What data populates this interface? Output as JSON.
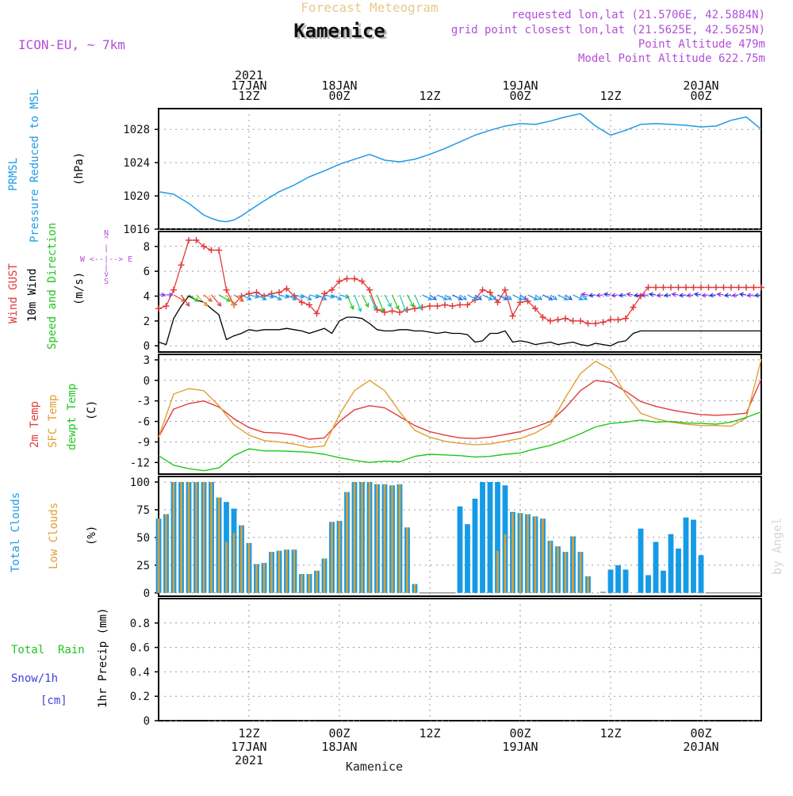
{
  "header": {
    "product": "Forecast Meteogram",
    "location": "Kamenice",
    "model": "ICON-EU, ~ 7km",
    "requested": "requested lon,lat (21.5706E, 42.5884N)",
    "gridpoint": "grid point closest lon,lat (21.5625E, 42.5625N)",
    "point_alt": "Point Altitude 479m",
    "model_alt": "Model Point Altitude 622.75m",
    "footer": "Kamenice",
    "watermark": "by Angel"
  },
  "colors": {
    "header_product": "#e8c98c",
    "header_meta": "#b14fd8",
    "pressure": "#1e9be6",
    "gust": "#e23a3a",
    "wind": "#000000",
    "temp2m": "#e23a3a",
    "sfc": "#e0a030",
    "dewpt": "#1dc81d",
    "total_clouds": "#159be6",
    "low_clouds": "#e0a030",
    "rain": "#1dc81d",
    "snow": "#3f3fe0"
  },
  "time_axis": {
    "top_labels": [
      {
        "h": 12,
        "lines": [
          "2021",
          "17JAN",
          "12Z"
        ]
      },
      {
        "h": 24,
        "lines": [
          "18JAN",
          "00Z"
        ]
      },
      {
        "h": 36,
        "lines": [
          "12Z"
        ]
      },
      {
        "h": 48,
        "lines": [
          "19JAN",
          "00Z"
        ]
      },
      {
        "h": 60,
        "lines": [
          "12Z"
        ]
      },
      {
        "h": 72,
        "lines": [
          "20JAN",
          "00Z"
        ]
      }
    ],
    "bottom_labels": [
      {
        "h": 12,
        "lines": [
          "12Z",
          "17JAN",
          "2021"
        ]
      },
      {
        "h": 24,
        "lines": [
          "00Z",
          "18JAN"
        ]
      },
      {
        "h": 36,
        "lines": [
          "12Z"
        ]
      },
      {
        "h": 48,
        "lines": [
          "00Z",
          "19JAN"
        ]
      },
      {
        "h": 60,
        "lines": [
          "12Z"
        ]
      },
      {
        "h": 72,
        "lines": [
          "00Z",
          "20JAN"
        ]
      }
    ]
  },
  "panels": {
    "pressure": {
      "labels": [
        "PRMSL",
        "Pressure Reduced to MSL",
        "(hPa)"
      ],
      "ticks": [
        "1016",
        "1020",
        "1024",
        "1028"
      ]
    },
    "wind": {
      "labels": [
        "Wind GUST",
        "10m Wind",
        "Speed and Direction",
        "(m/s)"
      ],
      "ticks": [
        "0",
        "2",
        "4",
        "6",
        "8"
      ],
      "compass": [
        "N",
        "^",
        "|",
        "W <--|--> E",
        "|",
        "v",
        "S"
      ]
    },
    "temp": {
      "labels": [
        "2m Temp",
        "SFC Temp",
        "dewpt Temp",
        "(C)"
      ],
      "ticks": [
        "-12",
        "-9",
        "-6",
        "-3",
        "0",
        "3"
      ]
    },
    "clouds": {
      "labels": [
        "Total Clouds",
        "Low Clouds",
        "(%)"
      ],
      "ticks": [
        "0",
        "25",
        "50",
        "75",
        "100"
      ]
    },
    "precip": {
      "labels": [
        "Total  Rain",
        "Snow/1h",
        "[cm]",
        "1hr Precip (mm)"
      ],
      "ticks": [
        "0",
        "0.2",
        "0.4",
        "0.6",
        "0.8"
      ]
    }
  },
  "chart_data": [
    {
      "type": "line",
      "title": "PRMSL Pressure Reduced to MSL",
      "ylabel": "hPa",
      "ylim": [
        1016,
        1030.5
      ],
      "series": [
        {
          "name": "PRMSL",
          "x": [
            0,
            2,
            4,
            6,
            7,
            8,
            9,
            10,
            11,
            12,
            13,
            14,
            16,
            18,
            20,
            22,
            24,
            26,
            28,
            30,
            32,
            34,
            36,
            38,
            40,
            42,
            44,
            46,
            48,
            50,
            52,
            54,
            56,
            58,
            60,
            62,
            64,
            66,
            68,
            70,
            72,
            74,
            76,
            78,
            80
          ],
          "values": [
            1020.5,
            1020.2,
            1019.1,
            1017.7,
            1017.3,
            1017.0,
            1016.9,
            1017.1,
            1017.6,
            1018.2,
            1018.8,
            1019.4,
            1020.5,
            1021.3,
            1022.3,
            1023.0,
            1023.8,
            1024.4,
            1025.0,
            1024.3,
            1024.1,
            1024.4,
            1025.0,
            1025.7,
            1026.5,
            1027.3,
            1027.9,
            1028.4,
            1028.7,
            1028.6,
            1029.0,
            1029.5,
            1029.9,
            1028.4,
            1027.3,
            1027.9,
            1028.6,
            1028.7,
            1028.6,
            1028.5,
            1028.3,
            1028.4,
            1029.1,
            1029.5,
            1028.0
          ]
        }
      ]
    },
    {
      "type": "line",
      "title": "Wind GUST / 10m Wind Speed and Direction",
      "ylabel": "m/s",
      "ylim": [
        -0.5,
        9.2
      ],
      "series": [
        {
          "name": "Wind GUST",
          "x": [
            0,
            1,
            2,
            3,
            4,
            5,
            6,
            7,
            8,
            9,
            10,
            11,
            12,
            13,
            14,
            15,
            16,
            17,
            18,
            19,
            20,
            21,
            22,
            23,
            24,
            25,
            26,
            27,
            28,
            29,
            30,
            31,
            32,
            33,
            34,
            35,
            36,
            37,
            38,
            39,
            40,
            41,
            42,
            43,
            44,
            45,
            46,
            47,
            48,
            49,
            50,
            51,
            52,
            53,
            54,
            55,
            56,
            57,
            58,
            59,
            60,
            61,
            62,
            63,
            64,
            65,
            66,
            67,
            68,
            69,
            70,
            71,
            72,
            73,
            74,
            75,
            76,
            77,
            78,
            79,
            80
          ],
          "values": [
            3.0,
            3.2,
            4.5,
            6.5,
            8.5,
            8.5,
            8.0,
            7.7,
            7.7,
            4.5,
            3.3,
            4.0,
            4.2,
            4.3,
            4.0,
            4.2,
            4.3,
            4.6,
            4.0,
            3.5,
            3.3,
            2.6,
            4.2,
            4.5,
            5.2,
            5.4,
            5.4,
            5.2,
            4.5,
            2.9,
            2.7,
            2.8,
            2.7,
            2.9,
            3.0,
            3.1,
            3.2,
            3.2,
            3.3,
            3.2,
            3.3,
            3.3,
            3.7,
            4.5,
            4.3,
            3.5,
            4.5,
            2.4,
            3.5,
            3.6,
            3.0,
            2.3,
            2.0,
            2.1,
            2.2,
            2.0,
            2.0,
            1.8,
            1.8,
            1.9,
            2.1,
            2.1,
            2.2,
            3.1,
            4.0,
            4.7,
            4.7,
            4.7,
            4.7,
            4.7,
            4.7,
            4.7,
            4.7,
            4.7,
            4.7,
            4.7,
            4.7,
            4.7,
            4.7,
            4.7,
            4.7
          ]
        },
        {
          "name": "10m Wind",
          "x": [
            0,
            1,
            2,
            3,
            4,
            5,
            6,
            7,
            8,
            9,
            10,
            11,
            12,
            13,
            14,
            15,
            16,
            17,
            18,
            19,
            20,
            21,
            22,
            23,
            24,
            25,
            26,
            27,
            28,
            29,
            30,
            31,
            32,
            33,
            34,
            35,
            36,
            37,
            38,
            39,
            40,
            41,
            42,
            43,
            44,
            45,
            46,
            47,
            48,
            49,
            50,
            51,
            52,
            53,
            54,
            55,
            56,
            57,
            58,
            59,
            60,
            61,
            62,
            63,
            64,
            65,
            66,
            67,
            68,
            69,
            70,
            71,
            72,
            73,
            74,
            75,
            76,
            77,
            78,
            79,
            80
          ],
          "values": [
            0.3,
            0.1,
            2.2,
            3.2,
            4.0,
            3.7,
            3.5,
            3.0,
            2.5,
            0.5,
            0.8,
            1.0,
            1.3,
            1.2,
            1.3,
            1.3,
            1.3,
            1.4,
            1.3,
            1.2,
            1.0,
            1.2,
            1.4,
            1.0,
            2.0,
            2.3,
            2.3,
            2.2,
            1.8,
            1.3,
            1.2,
            1.2,
            1.3,
            1.3,
            1.2,
            1.2,
            1.1,
            1.0,
            1.1,
            1.0,
            1.0,
            0.9,
            0.3,
            0.4,
            1.0,
            1.0,
            1.2,
            0.3,
            0.4,
            0.3,
            0.1,
            0.2,
            0.3,
            0.1,
            0.2,
            0.3,
            0.1,
            0.0,
            0.2,
            0.1,
            0.0,
            0.3,
            0.4,
            1.0,
            1.2,
            1.2,
            1.2,
            1.2,
            1.2,
            1.2,
            1.2,
            1.2,
            1.2,
            1.2,
            1.2,
            1.2,
            1.2,
            1.2,
            1.2,
            1.2,
            1.2
          ]
        }
      ]
    },
    {
      "type": "line",
      "title": "2m Temp / SFC Temp / dewpt Temp",
      "ylabel": "C",
      "ylim": [
        -13.7,
        3.8
      ],
      "series": [
        {
          "name": "2m Temp",
          "x": [
            0,
            2,
            4,
            6,
            8,
            10,
            12,
            14,
            16,
            18,
            20,
            22,
            24,
            26,
            28,
            30,
            32,
            34,
            36,
            38,
            40,
            42,
            44,
            46,
            48,
            50,
            52,
            54,
            56,
            58,
            60,
            62,
            64,
            66,
            68,
            70,
            72,
            74,
            76,
            78,
            80
          ],
          "values": [
            -8.3,
            -4.2,
            -3.4,
            -3.0,
            -3.9,
            -5.6,
            -6.9,
            -7.6,
            -7.7,
            -8.0,
            -8.6,
            -8.4,
            -6.0,
            -4.3,
            -3.7,
            -4.0,
            -5.3,
            -6.6,
            -7.5,
            -8.0,
            -8.4,
            -8.5,
            -8.3,
            -7.9,
            -7.5,
            -6.8,
            -6.0,
            -4.0,
            -1.5,
            0.0,
            -0.3,
            -1.6,
            -3.1,
            -3.8,
            -4.3,
            -4.7,
            -5.0,
            -5.1,
            -5.0,
            -4.8,
            0.2
          ]
        },
        {
          "name": "SFC Temp",
          "x": [
            0,
            2,
            4,
            6,
            8,
            10,
            12,
            14,
            16,
            18,
            20,
            22,
            24,
            26,
            28,
            30,
            32,
            34,
            36,
            38,
            40,
            42,
            44,
            46,
            48,
            50,
            52,
            54,
            56,
            58,
            60,
            62,
            64,
            66,
            68,
            70,
            72,
            74,
            76,
            78,
            80
          ],
          "values": [
            -8.3,
            -2.0,
            -1.2,
            -1.5,
            -3.7,
            -6.5,
            -8.0,
            -8.8,
            -9.0,
            -9.3,
            -9.8,
            -9.6,
            -5.0,
            -1.5,
            0.0,
            -1.5,
            -4.6,
            -7.3,
            -8.3,
            -8.9,
            -9.2,
            -9.4,
            -9.3,
            -8.9,
            -8.5,
            -7.7,
            -6.4,
            -2.5,
            1.0,
            2.8,
            1.6,
            -2.0,
            -4.8,
            -5.6,
            -6.1,
            -6.4,
            -6.6,
            -6.6,
            -6.7,
            -5.5,
            3.1
          ]
        },
        {
          "name": "dewpt Temp",
          "x": [
            0,
            2,
            4,
            6,
            8,
            10,
            12,
            14,
            16,
            18,
            20,
            22,
            24,
            26,
            28,
            30,
            32,
            34,
            36,
            38,
            40,
            42,
            44,
            46,
            48,
            50,
            52,
            54,
            56,
            58,
            60,
            62,
            64,
            66,
            68,
            70,
            72,
            74,
            76,
            78,
            80
          ],
          "values": [
            -11.0,
            -12.4,
            -12.9,
            -13.2,
            -12.8,
            -11.0,
            -10.0,
            -10.3,
            -10.3,
            -10.4,
            -10.5,
            -10.8,
            -11.3,
            -11.7,
            -12.0,
            -11.8,
            -11.9,
            -11.1,
            -10.8,
            -10.9,
            -11.0,
            -11.2,
            -11.1,
            -10.8,
            -10.6,
            -10.0,
            -9.5,
            -8.7,
            -7.8,
            -6.8,
            -6.3,
            -6.1,
            -5.8,
            -6.1,
            -6.0,
            -6.2,
            -6.3,
            -6.4,
            -6.1,
            -5.4,
            -4.6
          ]
        }
      ]
    },
    {
      "type": "bar",
      "title": "Total Clouds / Low Clouds",
      "ylabel": "%",
      "ylim": [
        -3,
        105
      ],
      "x": [
        0,
        1,
        2,
        3,
        4,
        5,
        6,
        7,
        8,
        9,
        10,
        11,
        12,
        13,
        14,
        15,
        16,
        17,
        18,
        19,
        20,
        21,
        22,
        23,
        24,
        25,
        26,
        27,
        28,
        29,
        30,
        31,
        32,
        33,
        34,
        35,
        36,
        37,
        38,
        39,
        40,
        41,
        42,
        43,
        44,
        45,
        46,
        47,
        48,
        49,
        50,
        51,
        52,
        53,
        54,
        55,
        56,
        57,
        58,
        59,
        60,
        61,
        62,
        63,
        64,
        65,
        66,
        67,
        68,
        69,
        70,
        71,
        72,
        73,
        74,
        75,
        76,
        77,
        78,
        79,
        80
      ],
      "series": [
        {
          "name": "Total Clouds",
          "values": [
            67,
            71,
            100,
            100,
            100,
            100,
            100,
            100,
            86,
            82,
            76,
            61,
            45,
            26,
            27,
            37,
            38,
            39,
            39,
            17,
            17,
            20,
            31,
            64,
            65,
            91,
            100,
            100,
            100,
            98,
            98,
            97,
            98,
            59,
            8,
            0,
            0,
            0,
            0,
            0,
            78,
            62,
            85,
            100,
            100,
            100,
            97,
            73,
            72,
            71,
            69,
            67,
            47,
            42,
            37,
            51,
            37,
            15,
            0,
            1,
            21,
            25,
            21,
            0,
            58,
            16,
            46,
            20,
            53,
            40,
            68,
            66,
            34,
            0,
            0,
            0,
            0,
            0,
            0,
            0,
            0
          ]
        },
        {
          "name": "Low Clouds",
          "values": [
            67,
            71,
            100,
            100,
            100,
            100,
            100,
            100,
            86,
            46,
            54,
            61,
            45,
            26,
            27,
            37,
            38,
            39,
            39,
            17,
            17,
            20,
            31,
            64,
            65,
            91,
            100,
            100,
            100,
            98,
            98,
            97,
            98,
            59,
            8,
            0,
            0,
            0,
            0,
            0,
            0,
            0,
            0,
            0,
            0,
            38,
            53,
            72,
            72,
            71,
            69,
            67,
            47,
            42,
            37,
            51,
            37,
            15,
            0,
            1,
            0,
            0,
            0,
            0,
            0,
            0,
            0,
            0,
            0,
            0,
            0,
            0,
            0,
            0,
            0,
            0,
            0,
            0,
            0,
            0,
            0
          ]
        }
      ]
    },
    {
      "type": "bar",
      "title": "1hr Precip",
      "ylabel": "mm",
      "ylim": [
        0,
        1.0
      ],
      "series": [
        {
          "name": "Total Rain",
          "values": []
        },
        {
          "name": "Snow/1h",
          "values": []
        }
      ]
    }
  ]
}
